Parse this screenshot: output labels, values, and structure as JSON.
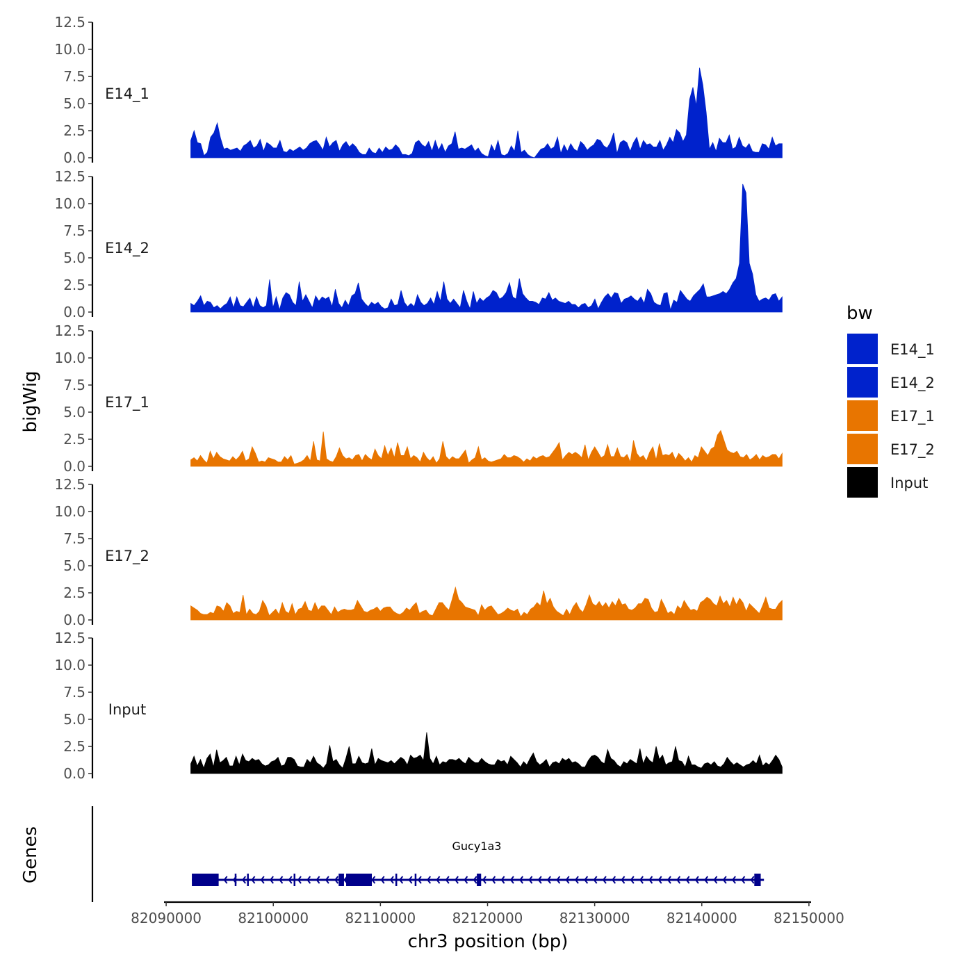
{
  "chart_data": {
    "type": "area",
    "title": "",
    "xlabel": "chr3 position (bp)",
    "ylabel": "bigWig",
    "genes_label": "Genes",
    "x_range": [
      82092300,
      82147500
    ],
    "xlim": [
      82089800,
      82150200
    ],
    "x_ticks": [
      82090000,
      82100000,
      82110000,
      82120000,
      82130000,
      82140000,
      82150000
    ],
    "x_tick_labels": [
      "82090000",
      "82100000",
      "82110000",
      "82120000",
      "82130000",
      "82140000",
      "82150000"
    ],
    "ylim": [
      0,
      12.5
    ],
    "y_ticks": [
      0,
      2.5,
      5,
      7.5,
      10,
      12.5
    ],
    "y_tick_labels": [
      "0.0",
      "2.5",
      "5.0",
      "7.5",
      "10.0",
      "12.5"
    ],
    "legend": {
      "title": "bw",
      "position": "right",
      "entries": [
        {
          "label": "E14_1",
          "color": "#0022CC"
        },
        {
          "label": "E14_2",
          "color": "#0022CC"
        },
        {
          "label": "E17_1",
          "color": "#E87500"
        },
        {
          "label": "E17_2",
          "color": "#E87500"
        },
        {
          "label": "Input",
          "color": "#000000"
        }
      ]
    },
    "series": [
      {
        "name": "E14_1",
        "color": "#0022CC",
        "values": [
          1.6,
          2.5,
          1.4,
          1.3,
          0.2,
          0.5,
          1.9,
          2.3,
          3.2,
          1.8,
          0.8,
          0.9,
          0.7,
          0.8,
          0.9,
          0.6,
          1.1,
          1.3,
          1.6,
          0.9,
          1.1,
          1.7,
          0.6,
          1.4,
          1.2,
          0.9,
          0.9,
          1.6,
          0.6,
          0.5,
          0.8,
          0.6,
          0.8,
          1.0,
          0.7,
          0.9,
          1.3,
          1.5,
          1.6,
          1.2,
          0.7,
          1.9,
          1.0,
          1.4,
          1.6,
          0.6,
          1.2,
          1.5,
          1.0,
          1.3,
          1.0,
          0.5,
          0.3,
          0.3,
          0.9,
          0.5,
          0.4,
          0.9,
          0.5,
          1.0,
          0.7,
          0.8,
          1.2,
          0.9,
          0.3,
          0.3,
          0.2,
          0.4,
          1.4,
          1.6,
          1.2,
          1.0,
          1.5,
          0.6,
          1.6,
          0.7,
          1.3,
          0.5,
          1.1,
          1.3,
          2.4,
          0.8,
          0.9,
          0.8,
          1.0,
          1.2,
          0.6,
          0.9,
          0.4,
          0.2,
          0.1,
          1.2,
          0.6,
          1.6,
          0.3,
          0.2,
          0.4,
          1.1,
          0.6,
          2.5,
          0.5,
          0.7,
          0.3,
          0.1,
          0.0,
          0.4,
          0.8,
          0.9,
          1.3,
          0.8,
          1.0,
          1.9,
          0.4,
          1.2,
          0.6,
          1.3,
          0.8,
          0.6,
          1.5,
          1.2,
          0.7,
          1.0,
          1.2,
          1.7,
          1.6,
          1.1,
          0.9,
          1.4,
          2.3,
          0.4,
          1.4,
          1.6,
          1.4,
          0.6,
          1.4,
          1.9,
          0.8,
          1.6,
          1.2,
          1.3,
          1.0,
          1.0,
          1.6,
          0.7,
          1.2,
          1.9,
          1.4,
          2.6,
          2.3,
          1.5,
          2.1,
          5.4,
          6.5,
          4.8,
          8.3,
          6.7,
          4.2,
          0.8,
          1.4,
          0.6,
          1.8,
          1.4,
          1.4,
          2.1,
          0.8,
          1.0,
          1.9,
          1.1,
          0.9,
          1.3,
          0.6,
          0.5,
          0.5,
          1.3,
          1.2,
          0.8,
          1.9,
          1.1,
          1.3,
          1.3
        ]
      },
      {
        "name": "E14_2",
        "color": "#0022CC",
        "values": [
          0.8,
          0.6,
          1.0,
          1.5,
          0.6,
          1.0,
          0.9,
          0.4,
          0.6,
          0.3,
          0.6,
          0.8,
          1.4,
          0.4,
          1.4,
          0.6,
          0.5,
          0.9,
          1.3,
          0.4,
          1.4,
          0.6,
          0.4,
          0.6,
          3.0,
          0.4,
          1.4,
          0.2,
          1.3,
          1.8,
          1.6,
          0.9,
          0.6,
          2.8,
          1.0,
          1.6,
          1.0,
          0.4,
          1.5,
          1.0,
          1.4,
          1.2,
          1.4,
          0.5,
          2.1,
          0.8,
          0.4,
          1.1,
          0.6,
          1.5,
          1.7,
          2.7,
          1.2,
          0.8,
          0.5,
          0.9,
          0.7,
          0.9,
          0.5,
          0.3,
          0.4,
          1.2,
          0.6,
          0.7,
          2.0,
          0.9,
          0.5,
          0.8,
          0.5,
          1.6,
          0.9,
          0.6,
          0.8,
          1.3,
          0.7,
          1.9,
          1.0,
          2.8,
          1.2,
          0.8,
          1.2,
          0.8,
          0.4,
          2.0,
          1.0,
          0.3,
          1.9,
          0.8,
          1.3,
          1.0,
          1.3,
          1.5,
          2.0,
          1.8,
          1.2,
          1.4,
          1.8,
          2.7,
          1.4,
          1.2,
          3.1,
          1.7,
          1.3,
          1.0,
          1.0,
          0.9,
          0.7,
          1.3,
          1.2,
          1.8,
          1.1,
          1.3,
          1.0,
          0.9,
          0.8,
          1.0,
          0.7,
          0.7,
          0.4,
          0.7,
          0.8,
          0.4,
          0.6,
          1.2,
          0.3,
          0.9,
          1.4,
          1.7,
          1.3,
          1.8,
          1.7,
          0.8,
          1.2,
          1.3,
          1.5,
          1.2,
          1.0,
          1.4,
          0.8,
          2.1,
          1.7,
          0.9,
          0.7,
          0.6,
          1.7,
          1.8,
          0.2,
          1.1,
          0.9,
          2.0,
          1.6,
          1.2,
          1.0,
          1.5,
          1.8,
          2.1,
          2.6,
          1.4,
          1.4,
          1.5,
          1.6,
          1.7,
          1.9,
          1.7,
          2.1,
          2.7,
          3.1,
          4.5,
          11.8,
          11.0,
          4.5,
          3.5,
          1.6,
          1.0,
          1.2,
          1.3,
          1.1,
          1.6,
          1.7,
          1.0,
          1.4
        ]
      },
      {
        "name": "E17_1",
        "color": "#E87500",
        "values": [
          0.6,
          0.8,
          0.5,
          1.0,
          0.6,
          0.3,
          1.4,
          0.7,
          1.3,
          0.9,
          0.7,
          0.6,
          0.5,
          0.9,
          0.6,
          0.9,
          1.4,
          0.5,
          0.7,
          1.8,
          1.2,
          0.4,
          0.5,
          0.4,
          0.8,
          0.7,
          0.6,
          0.4,
          0.4,
          0.9,
          0.6,
          1.0,
          0.2,
          0.3,
          0.4,
          0.6,
          1.0,
          0.5,
          2.3,
          0.6,
          0.5,
          3.2,
          0.7,
          0.5,
          0.4,
          0.9,
          1.7,
          1.0,
          0.7,
          0.8,
          0.6,
          1.0,
          1.1,
          0.5,
          1.1,
          0.8,
          0.6,
          1.6,
          1.0,
          0.7,
          1.9,
          1.0,
          1.7,
          0.8,
          2.2,
          1.0,
          1.0,
          1.8,
          0.7,
          1.0,
          0.8,
          0.4,
          1.3,
          0.8,
          0.5,
          0.9,
          0.3,
          0.7,
          2.3,
          0.9,
          0.6,
          0.9,
          0.7,
          0.7,
          1.1,
          1.5,
          0.3,
          0.6,
          0.8,
          1.8,
          0.6,
          0.8,
          0.5,
          0.4,
          0.5,
          0.6,
          0.7,
          1.1,
          0.8,
          0.8,
          1.0,
          0.9,
          0.7,
          0.4,
          0.7,
          0.5,
          0.9,
          0.7,
          0.9,
          1.0,
          0.8,
          0.9,
          1.3,
          1.7,
          2.2,
          0.6,
          1.0,
          1.3,
          1.1,
          1.3,
          1.1,
          0.8,
          2.0,
          0.6,
          1.3,
          1.8,
          1.3,
          0.8,
          1.0,
          2.0,
          0.9,
          0.9,
          1.7,
          0.9,
          0.8,
          1.1,
          0.4,
          2.4,
          1.2,
          0.8,
          1.0,
          0.5,
          1.3,
          1.8,
          0.6,
          2.1,
          1.0,
          1.1,
          1.0,
          1.3,
          0.6,
          1.2,
          0.9,
          0.5,
          0.8,
          0.4,
          1.0,
          0.8,
          1.8,
          1.4,
          1.0,
          1.6,
          1.8,
          2.9,
          3.3,
          2.4,
          1.5,
          1.3,
          1.2,
          1.4,
          0.9,
          0.8,
          1.1,
          0.6,
          0.8,
          1.1,
          0.6,
          1.0,
          0.8,
          0.9,
          1.1,
          1.1,
          0.7,
          1.2
        ]
      },
      {
        "name": "E17_2",
        "color": "#E87500",
        "values": [
          1.3,
          1.1,
          0.9,
          0.6,
          0.5,
          0.5,
          0.7,
          0.6,
          1.3,
          1.2,
          0.8,
          1.6,
          1.3,
          0.6,
          0.8,
          0.7,
          2.3,
          0.5,
          1.0,
          0.6,
          0.5,
          0.8,
          1.8,
          1.3,
          0.4,
          0.7,
          1.0,
          0.5,
          1.6,
          0.8,
          0.6,
          1.5,
          0.5,
          1.0,
          1.1,
          1.7,
          0.9,
          0.8,
          1.6,
          0.9,
          1.3,
          1.3,
          0.9,
          0.5,
          1.2,
          0.7,
          0.9,
          1.0,
          0.9,
          0.9,
          1.0,
          1.8,
          1.3,
          0.8,
          0.7,
          0.9,
          1.0,
          1.2,
          0.8,
          1.1,
          1.2,
          1.2,
          0.8,
          0.6,
          0.5,
          0.7,
          1.1,
          0.9,
          1.3,
          1.6,
          0.6,
          0.8,
          0.9,
          0.5,
          0.4,
          1.0,
          1.6,
          1.6,
          1.2,
          0.9,
          1.9,
          3.0,
          1.9,
          1.6,
          1.2,
          1.1,
          1.0,
          0.9,
          0.4,
          1.4,
          0.9,
          1.2,
          1.3,
          0.9,
          0.5,
          0.6,
          0.8,
          1.1,
          0.9,
          0.8,
          1.0,
          0.3,
          0.7,
          0.5,
          1.0,
          1.2,
          1.6,
          1.3,
          2.7,
          1.5,
          2.0,
          1.2,
          0.8,
          0.6,
          0.4,
          1.0,
          0.5,
          1.2,
          1.6,
          1.0,
          0.7,
          1.4,
          2.3,
          1.5,
          1.3,
          1.7,
          1.2,
          1.6,
          1.1,
          1.7,
          1.3,
          2.0,
          1.4,
          1.5,
          1.0,
          0.9,
          1.1,
          1.5,
          1.5,
          2.0,
          1.9,
          1.1,
          0.7,
          0.8,
          1.9,
          1.3,
          0.6,
          0.8,
          0.5,
          1.3,
          1.0,
          1.8,
          1.3,
          0.9,
          1.0,
          0.8,
          1.6,
          1.8,
          2.1,
          1.9,
          1.5,
          1.3,
          2.2,
          1.5,
          1.8,
          1.2,
          2.1,
          1.4,
          2.0,
          1.6,
          0.8,
          1.5,
          1.2,
          0.9,
          0.6,
          1.3,
          2.1,
          1.1,
          1.0,
          1.0,
          1.5,
          1.8
        ]
      },
      {
        "name": "Input",
        "color": "#000000",
        "values": [
          0.9,
          1.6,
          0.7,
          1.3,
          0.5,
          1.4,
          1.8,
          0.6,
          2.2,
          1.0,
          1.2,
          1.5,
          0.7,
          0.7,
          1.6,
          0.8,
          1.8,
          1.2,
          1.1,
          1.4,
          1.2,
          1.3,
          0.9,
          0.7,
          0.8,
          1.1,
          1.2,
          1.5,
          0.7,
          0.8,
          1.5,
          1.5,
          1.3,
          0.7,
          0.6,
          0.6,
          1.3,
          1.0,
          1.6,
          1.0,
          0.8,
          0.5,
          0.9,
          2.6,
          1.1,
          1.3,
          0.8,
          0.5,
          1.4,
          2.5,
          0.9,
          0.9,
          1.6,
          1.0,
          0.9,
          1.0,
          2.3,
          0.8,
          1.4,
          1.2,
          1.1,
          1.0,
          1.2,
          0.9,
          1.2,
          1.5,
          1.3,
          0.8,
          1.7,
          1.4,
          1.5,
          1.7,
          1.2,
          3.8,
          1.4,
          0.9,
          1.6,
          0.8,
          1.1,
          1.0,
          1.3,
          1.3,
          1.2,
          1.4,
          1.1,
          0.9,
          1.5,
          1.2,
          1.0,
          1.0,
          1.4,
          1.1,
          0.9,
          0.8,
          0.8,
          1.3,
          1.1,
          1.2,
          0.8,
          1.6,
          1.3,
          1.0,
          0.6,
          1.1,
          0.8,
          1.4,
          1.9,
          1.1,
          0.8,
          1.0,
          1.3,
          0.6,
          1.0,
          1.1,
          0.9,
          1.4,
          1.2,
          1.4,
          1.0,
          1.1,
          0.9,
          0.6,
          0.6,
          1.2,
          1.6,
          1.7,
          1.5,
          1.1,
          0.9,
          2.2,
          1.4,
          1.2,
          0.8,
          0.6,
          1.1,
          0.9,
          1.3,
          1.1,
          0.9,
          2.3,
          0.9,
          1.6,
          1.2,
          1.0,
          2.5,
          1.3,
          1.7,
          0.8,
          1.0,
          1.1,
          2.5,
          1.2,
          1.1,
          0.6,
          1.6,
          0.8,
          0.8,
          0.6,
          0.5,
          0.9,
          1.0,
          0.8,
          1.1,
          0.7,
          0.6,
          0.9,
          1.5,
          1.1,
          0.8,
          1.0,
          0.8,
          0.6,
          0.8,
          0.9,
          1.2,
          0.9,
          1.7,
          0.7,
          1.0,
          0.8,
          1.2,
          1.7,
          1.3,
          0.6
        ]
      }
    ],
    "gene": {
      "name": "Gucy1a3",
      "strand": "-",
      "color": "#00008B",
      "start": 82092400,
      "end": 82145800,
      "exons": [
        [
          82092400,
          82094900
        ],
        [
          82096400,
          82096550
        ],
        [
          82097550,
          82097700
        ],
        [
          82101900,
          82102050
        ],
        [
          82106100,
          82106600
        ],
        [
          82106800,
          82109200
        ],
        [
          82111400,
          82111550
        ],
        [
          82113200,
          82113350
        ],
        [
          82119000,
          82119400
        ],
        [
          82144900,
          82145500
        ]
      ]
    }
  }
}
